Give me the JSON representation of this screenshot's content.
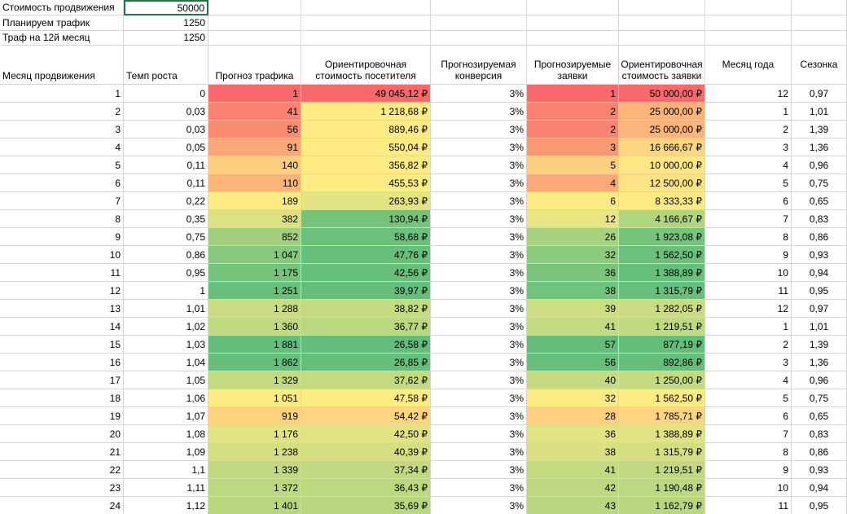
{
  "params": [
    {
      "label": "Стоимость продвижения",
      "value": "50000"
    },
    {
      "label": "Планируем трафик",
      "value": "1250"
    },
    {
      "label": "Траф на 12й месяц",
      "value": "1250"
    }
  ],
  "headers": [
    "Месяц продвижения",
    "Темп роста",
    "Прогноз трафика",
    "Ориентировочная стоимость посетителя",
    "Прогнозируемая конверсия",
    "Прогнозируемые заявки",
    "Ориентировочная стоимость заявки",
    "Месяц года",
    "Сезонка"
  ],
  "rows": [
    {
      "cells": [
        "1",
        "0",
        "1",
        "49 045,12 ₽",
        "3%",
        "1",
        "50 000,00 ₽",
        "12",
        "0,97"
      ],
      "fills": [
        null,
        null,
        "#f8696b",
        "#f8696b",
        null,
        "#f8696b",
        "#f8696b",
        null,
        null
      ]
    },
    {
      "cells": [
        "2",
        "0,03",
        "41",
        "1 218,68 ₽",
        "3%",
        "2",
        "25 000,00 ₽",
        "1",
        "1,01"
      ],
      "fills": [
        null,
        null,
        "#f98370",
        "#ffeb84",
        null,
        "#f98370",
        "#fcb479",
        null,
        null
      ]
    },
    {
      "cells": [
        "3",
        "0,03",
        "56",
        "889,46 ₽",
        "3%",
        "2",
        "25 000,00 ₽",
        "2",
        "1,39"
      ],
      "fills": [
        null,
        null,
        "#f98b71",
        "#ffeb84",
        null,
        "#f98370",
        "#fcb479",
        null,
        null
      ]
    },
    {
      "cells": [
        "4",
        "0,05",
        "91",
        "550,04 ₽",
        "3%",
        "3",
        "16 666,67 ₽",
        "3",
        "1,36"
      ],
      "fills": [
        null,
        null,
        "#fba676",
        "#ffea84",
        null,
        "#fa9873",
        "#fed580",
        null,
        null
      ]
    },
    {
      "cells": [
        "5",
        "0,11",
        "140",
        "356,82 ₽",
        "3%",
        "5",
        "10 000,00 ₽",
        "4",
        "0,96"
      ],
      "fills": [
        null,
        null,
        "#fdce7f",
        "#ffeb84",
        null,
        "#fdd07f",
        "#ffe884",
        null,
        null
      ]
    },
    {
      "cells": [
        "6",
        "0,11",
        "110",
        "455,53 ₽",
        "3%",
        "4",
        "12 500,00 ₽",
        "5",
        "0,75"
      ],
      "fills": [
        null,
        null,
        "#fcb479",
        "#ffeb84",
        null,
        "#fbaa77",
        "#fee283",
        null,
        null
      ]
    },
    {
      "cells": [
        "7",
        "0,22",
        "189",
        "263,93 ₽",
        "3%",
        "6",
        "8 333,33 ₽",
        "6",
        "0,65"
      ],
      "fills": [
        null,
        null,
        "#feeb84",
        "#e4e383",
        null,
        "#ffeb84",
        "#ffeb84",
        null,
        null
      ]
    },
    {
      "cells": [
        "8",
        "0,35",
        "382",
        "130,94 ₽",
        "3%",
        "12",
        "4 166,67 ₽",
        "7",
        "0,83"
      ],
      "fills": [
        null,
        null,
        "#dce182",
        "#76c47c",
        null,
        "#e8e583",
        "#b1d47f",
        null,
        null
      ]
    },
    {
      "cells": [
        "9",
        "0,75",
        "852",
        "58,68 ₽",
        "3%",
        "26",
        "1 923,08 ₽",
        "8",
        "0,86"
      ],
      "fills": [
        null,
        null,
        "#a3d07f",
        "#6bc07b",
        null,
        "#a6d17f",
        "#76c37c",
        null,
        null
      ]
    },
    {
      "cells": [
        "10",
        "0,86",
        "1 047",
        "47,76 ₽",
        "3%",
        "32",
        "1 562,50 ₽",
        "9",
        "0,93"
      ],
      "fills": [
        null,
        null,
        "#86c87d",
        "#68bf7b",
        null,
        "#8ccb7e",
        "#6bc17b",
        null,
        null
      ]
    },
    {
      "cells": [
        "11",
        "0,95",
        "1 175",
        "42,56 ₽",
        "3%",
        "36",
        "1 388,89 ₽",
        "10",
        "0,94"
      ],
      "fills": [
        null,
        null,
        "#74c37c",
        "#66bf7b",
        null,
        "#7ac57d",
        "#67c07b",
        null,
        null
      ]
    },
    {
      "cells": [
        "12",
        "1",
        "1 251",
        "39,97 ₽",
        "3%",
        "38",
        "1 315,79 ₽",
        "11",
        "0,95"
      ],
      "fills": [
        null,
        null,
        "#6ac07b",
        "#65bf7b",
        null,
        "#72c37c",
        "#66bf7b",
        null,
        null
      ]
    },
    {
      "cells": [
        "13",
        "1,01",
        "1 288",
        "38,82 ₽",
        "3%",
        "39",
        "1 282,05 ₽",
        "12",
        "0,97"
      ],
      "fills": [
        null,
        null,
        "#c9dc81",
        "#c5db81",
        null,
        "#ccdd82",
        "#c9dc81",
        null,
        null
      ]
    },
    {
      "cells": [
        "14",
        "1,02",
        "1 360",
        "36,77 ₽",
        "3%",
        "41",
        "1 219,51 ₽",
        "1",
        "1,01"
      ],
      "fills": [
        null,
        null,
        "#bfd980",
        "#bbd880",
        null,
        "#c3da81",
        "#bfd980",
        null,
        null
      ]
    },
    {
      "cells": [
        "15",
        "1,03",
        "1 881",
        "26,58 ₽",
        "3%",
        "57",
        "877,19 ₽",
        "2",
        "1,39"
      ],
      "fills": [
        null,
        null,
        "#63be7b",
        "#63be7b",
        null,
        "#63be7b",
        "#63be7b",
        null,
        null
      ]
    },
    {
      "cells": [
        "16",
        "1,04",
        "1 862",
        "26,85 ₽",
        "3%",
        "56",
        "892,86 ₽",
        "3",
        "1,36"
      ],
      "fills": [
        null,
        null,
        "#65bf7b",
        "#65bf7b",
        null,
        "#66bf7b",
        "#65bf7b",
        null,
        null
      ]
    },
    {
      "cells": [
        "17",
        "1,05",
        "1 329",
        "37,62 ₽",
        "3%",
        "40",
        "1 250,00 ₽",
        "4",
        "0,96"
      ],
      "fills": [
        null,
        null,
        "#c3da81",
        "#c3da81",
        null,
        "#c6db81",
        "#c3da81",
        null,
        null
      ]
    },
    {
      "cells": [
        "18",
        "1,06",
        "1 051",
        "47,58 ₽",
        "3%",
        "32",
        "1 562,50 ₽",
        "5",
        "0,75"
      ],
      "fills": [
        null,
        null,
        "#feea84",
        "#ffeb84",
        null,
        "#feea84",
        "#feea84",
        null,
        null
      ]
    },
    {
      "cells": [
        "19",
        "1,07",
        "919",
        "54,42 ₽",
        "3%",
        "28",
        "1 785,71 ₽",
        "6",
        "0,65"
      ],
      "fills": [
        null,
        null,
        "#fdd27f",
        "#fdd580",
        null,
        "#fdd17f",
        "#fdd580",
        null,
        null
      ]
    },
    {
      "cells": [
        "20",
        "1,08",
        "1 176",
        "42,50 ₽",
        "3%",
        "36",
        "1 388,89 ₽",
        "7",
        "0,83"
      ],
      "fills": [
        null,
        null,
        "#e2e283",
        "#e0e283",
        null,
        "#e4e383",
        "#e0e283",
        null,
        null
      ]
    },
    {
      "cells": [
        "21",
        "1,09",
        "1 238",
        "40,39 ₽",
        "3%",
        "38",
        "1 315,79 ₽",
        "8",
        "0,86"
      ],
      "fills": [
        null,
        null,
        "#d5df82",
        "#d5df82",
        null,
        "#d8e082",
        "#d5df82",
        null,
        null
      ]
    },
    {
      "cells": [
        "22",
        "1,1",
        "1 339",
        "37,34 ₽",
        "3%",
        "41",
        "1 219,51 ₽",
        "9",
        "0,93"
      ],
      "fills": [
        null,
        null,
        "#c1d980",
        "#c1d980",
        null,
        "#c3da81",
        "#c1d980",
        null,
        null
      ]
    },
    {
      "cells": [
        "23",
        "1,11",
        "1 372",
        "36,43 ₽",
        "3%",
        "42",
        "1 190,48 ₽",
        "10",
        "0,94"
      ],
      "fills": [
        null,
        null,
        "#bcd880",
        "#bcd880",
        null,
        "#bdd880",
        "#bcd880",
        null,
        null
      ]
    },
    {
      "cells": [
        "24",
        "1,12",
        "1 401",
        "35,69 ₽",
        "3%",
        "43",
        "1 162,79 ₽",
        "11",
        "0,95"
      ],
      "fills": [
        null,
        null,
        "#b8d780",
        "#b8d780",
        null,
        "#b8d780",
        "#b8d780",
        null,
        null
      ]
    }
  ]
}
